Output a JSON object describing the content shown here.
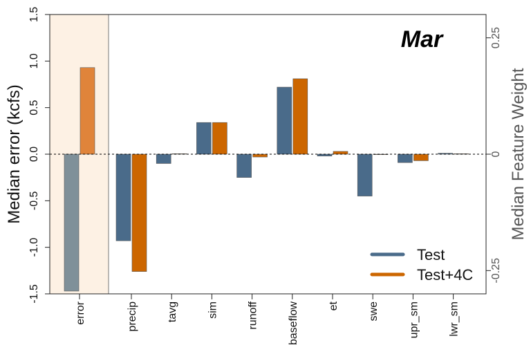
{
  "chart_data": {
    "type": "bar",
    "title": "Mar",
    "ylabel": "Median error (kcfs)",
    "ylabel_right": "Median Feature Weight",
    "ylim": [
      -1.5,
      1.5
    ],
    "yticks": [
      "-1.5",
      "-1.0",
      "-0.5",
      "0.0",
      "0.5",
      "1.0",
      "1.5"
    ],
    "ylim_right": [
      -0.3,
      0.3
    ],
    "yticks_right": [
      "-0.25",
      "0",
      "0.25"
    ],
    "zero_line": "dashed",
    "highlighted_category": "error",
    "categories": [
      "error",
      "precip",
      "tavg",
      "sim",
      "runoff",
      "baseflow",
      "et",
      "swe",
      "upr_sm",
      "lwr_sm"
    ],
    "series": [
      {
        "name": "Test",
        "color": "#4a6b8a",
        "highlight_color": "#7f9099",
        "values": [
          -1.47,
          -0.93,
          -0.1,
          0.34,
          -0.25,
          0.72,
          -0.02,
          -0.45,
          -0.09,
          0.01
        ]
      },
      {
        "name": "Test+4C",
        "color": "#cc6600",
        "highlight_color": "#e0843a",
        "values": [
          0.93,
          -1.26,
          0.005,
          0.34,
          -0.03,
          0.81,
          0.03,
          -0.005,
          -0.07,
          0.005
        ]
      }
    ],
    "legend_position": "bottom-right",
    "highlight_band_color": "#fdf1e4"
  }
}
